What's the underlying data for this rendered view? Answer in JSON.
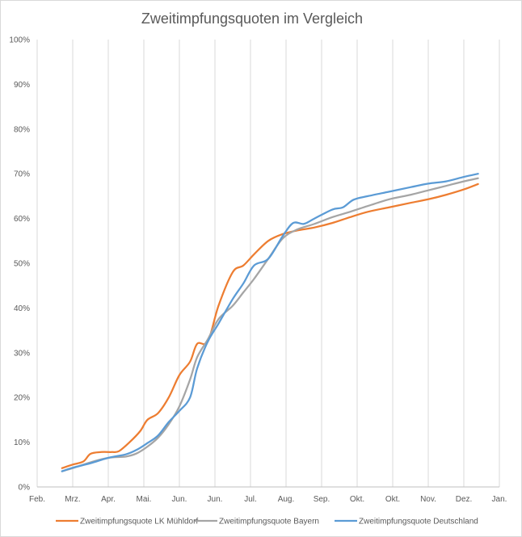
{
  "chart_data": {
    "type": "line",
    "title": "Zweitimpfungsquoten im Vergleich",
    "xlabel": "",
    "ylabel": "",
    "ylim": [
      0,
      100
    ],
    "x_ticks": [
      "Feb.",
      "Mrz.",
      "Apr.",
      "Mai.",
      "Jun.",
      "Jun.",
      "Jul.",
      "Aug.",
      "Sep.",
      "Okt.",
      "Okt.",
      "Nov.",
      "Dez.",
      "Jan."
    ],
    "y_ticks": [
      "0%",
      "10%",
      "20%",
      "30%",
      "40%",
      "50%",
      "60%",
      "70%",
      "80%",
      "90%",
      "100%"
    ],
    "grid": "vertical",
    "legend_position": "bottom",
    "series": [
      {
        "name": "Zweitimpfungsquote LK Mühldorf",
        "color": "#ed7d31",
        "points": [
          [
            0.7,
            4.2
          ],
          [
            1,
            5
          ],
          [
            1.3,
            5.7
          ],
          [
            1.5,
            7.4
          ],
          [
            1.8,
            7.8
          ],
          [
            2.1,
            7.8
          ],
          [
            2.3,
            8
          ],
          [
            2.6,
            10
          ],
          [
            2.9,
            12.5
          ],
          [
            3.1,
            15
          ],
          [
            3.4,
            16.5
          ],
          [
            3.7,
            20
          ],
          [
            4,
            25
          ],
          [
            4.3,
            28
          ],
          [
            4.5,
            32
          ],
          [
            4.8,
            32.5
          ],
          [
            5.1,
            40.5
          ],
          [
            5.5,
            48
          ],
          [
            5.8,
            49.5
          ],
          [
            6.1,
            52
          ],
          [
            6.5,
            55
          ],
          [
            6.9,
            56.5
          ],
          [
            7.3,
            57.3
          ],
          [
            7.8,
            58
          ],
          [
            8.3,
            59
          ],
          [
            8.8,
            60.3
          ],
          [
            9.3,
            61.5
          ],
          [
            9.9,
            62.5
          ],
          [
            10.5,
            63.5
          ],
          [
            11,
            64.3
          ],
          [
            11.5,
            65.3
          ],
          [
            12,
            66.5
          ],
          [
            12.4,
            67.7
          ]
        ]
      },
      {
        "name": "Zweitimpfungsquote Bayern",
        "color": "#a5a5a5",
        "points": [
          [
            0.7,
            3.5
          ],
          [
            1,
            4.2
          ],
          [
            1.5,
            5.5
          ],
          [
            2,
            6.5
          ],
          [
            2.5,
            6.8
          ],
          [
            2.8,
            7.5
          ],
          [
            3.1,
            9
          ],
          [
            3.4,
            11
          ],
          [
            3.7,
            14
          ],
          [
            4,
            18
          ],
          [
            4.3,
            24
          ],
          [
            4.5,
            29
          ],
          [
            4.8,
            33
          ],
          [
            5.1,
            37.5
          ],
          [
            5.5,
            40.5
          ],
          [
            5.8,
            43.5
          ],
          [
            6.1,
            46.5
          ],
          [
            6.5,
            51
          ],
          [
            6.9,
            55.5
          ],
          [
            7.3,
            57.5
          ],
          [
            7.8,
            58.8
          ],
          [
            8.3,
            60.3
          ],
          [
            8.8,
            61.5
          ],
          [
            9.3,
            62.8
          ],
          [
            9.9,
            64.3
          ],
          [
            10.5,
            65.3
          ],
          [
            11,
            66.3
          ],
          [
            11.5,
            67.3
          ],
          [
            12,
            68.3
          ],
          [
            12.4,
            69
          ]
        ]
      },
      {
        "name": "Zweitimpfungsquote Deutschland",
        "color": "#5b9bd5",
        "points": [
          [
            0.7,
            3.5
          ],
          [
            1,
            4.3
          ],
          [
            1.5,
            5.3
          ],
          [
            2,
            6.5
          ],
          [
            2.5,
            7.3
          ],
          [
            2.8,
            8.3
          ],
          [
            3.1,
            9.8
          ],
          [
            3.4,
            11.5
          ],
          [
            3.7,
            14.5
          ],
          [
            4,
            17
          ],
          [
            4.3,
            20
          ],
          [
            4.5,
            26.5
          ],
          [
            4.8,
            32.5
          ],
          [
            5.1,
            36.5
          ],
          [
            5.5,
            42
          ],
          [
            5.8,
            45.5
          ],
          [
            6.1,
            49.5
          ],
          [
            6.5,
            51
          ],
          [
            6.9,
            56
          ],
          [
            7.2,
            59
          ],
          [
            7.5,
            58.8
          ],
          [
            7.8,
            60
          ],
          [
            8.3,
            62
          ],
          [
            8.6,
            62.5
          ],
          [
            8.9,
            64.2
          ],
          [
            9.3,
            65
          ],
          [
            9.9,
            66
          ],
          [
            10.5,
            67
          ],
          [
            11,
            67.8
          ],
          [
            11.5,
            68.3
          ],
          [
            12,
            69.3
          ],
          [
            12.4,
            70
          ]
        ]
      }
    ]
  }
}
